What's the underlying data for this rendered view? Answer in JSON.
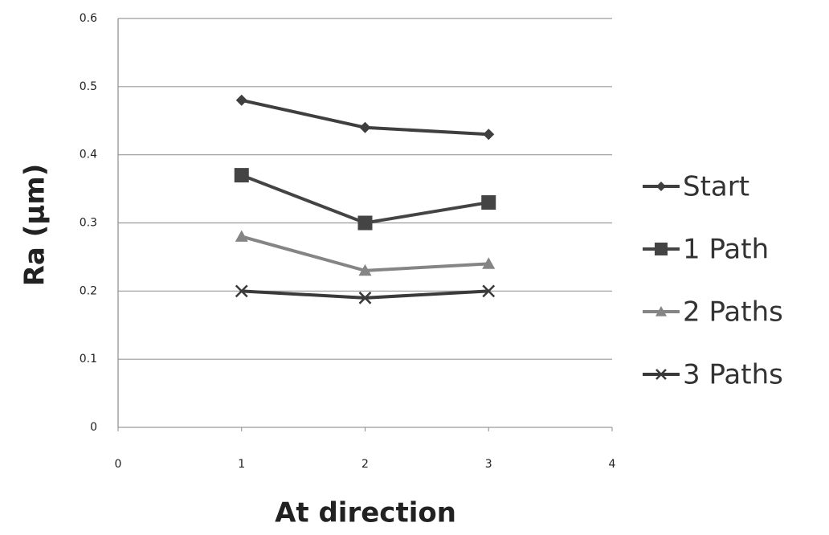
{
  "chart_data": {
    "type": "line",
    "x": [
      1,
      2,
      3
    ],
    "series": [
      {
        "name": "Start",
        "color": "#3f3f3f",
        "marker": "diamond",
        "values": [
          0.48,
          0.44,
          0.43
        ]
      },
      {
        "name": "1 Path",
        "color": "#444444",
        "marker": "square",
        "values": [
          0.37,
          0.3,
          0.33
        ]
      },
      {
        "name": "2 Paths",
        "color": "#858585",
        "marker": "triangle",
        "values": [
          0.28,
          0.23,
          0.24
        ]
      },
      {
        "name": "3 Paths",
        "color": "#3a3a3a",
        "marker": "x",
        "values": [
          0.2,
          0.19,
          0.2
        ]
      }
    ],
    "xlabel": "At direction",
    "ylabel": "Ra (µm)",
    "xlim": [
      0,
      4
    ],
    "xticks": [
      0,
      1,
      2,
      3,
      4
    ],
    "ylim": [
      0,
      0.6
    ],
    "yticks": [
      0,
      0.1,
      0.2,
      0.3,
      0.4,
      0.5,
      0.6
    ],
    "grid": true,
    "legend": "right"
  }
}
